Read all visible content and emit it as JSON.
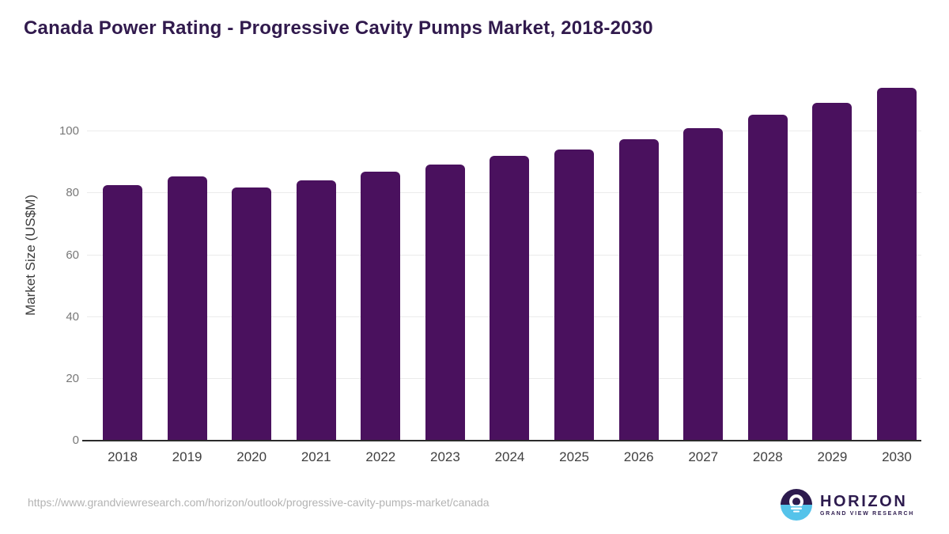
{
  "chart_data": {
    "type": "bar",
    "title": "Canada Power Rating - Progressive Cavity Pumps Market, 2018-2030",
    "categories": [
      "2018",
      "2019",
      "2020",
      "2021",
      "2022",
      "2023",
      "2024",
      "2025",
      "2026",
      "2027",
      "2028",
      "2029",
      "2030"
    ],
    "values": [
      82.6,
      85.4,
      81.8,
      84.3,
      87.0,
      89.4,
      92.2,
      94.2,
      97.4,
      101.0,
      105.4,
      109.2,
      114.0
    ],
    "xlabel": "",
    "ylabel": "Market Size (US$M)",
    "ylim": [
      0,
      120
    ],
    "yticks": [
      0,
      20,
      40,
      60,
      80,
      100
    ],
    "grid": true,
    "legend_position": "none",
    "bar_color": "#4a115e"
  },
  "colors": {
    "bar": "#4a115e",
    "title_text": "#311a4d",
    "logo_purple": "#2d1b4e",
    "logo_blue": "#55c3ea"
  },
  "footer": {
    "source_url": "https://www.grandviewresearch.com/horizon/outlook/progressive-cavity-pumps-market/canada",
    "logo": {
      "brand": "HORIZON",
      "subtitle": "GRAND VIEW RESEARCH"
    }
  }
}
